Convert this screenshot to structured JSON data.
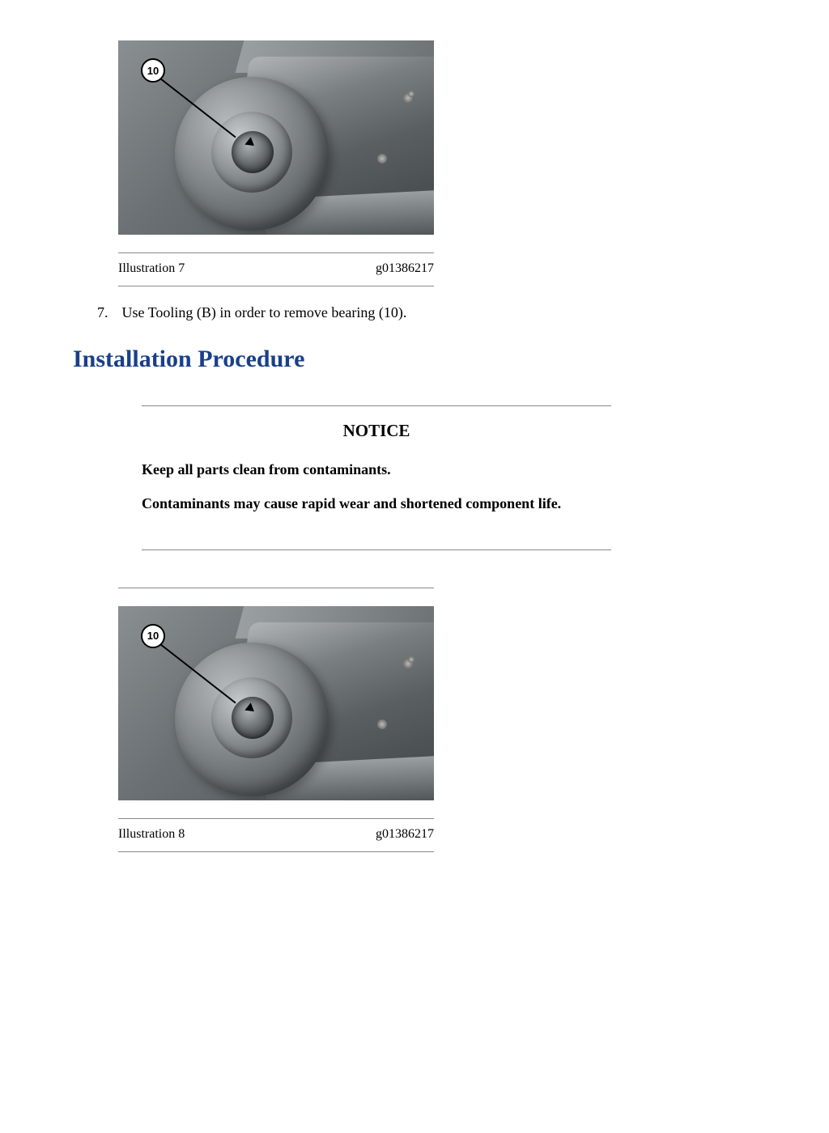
{
  "figure1": {
    "callout_label": "10",
    "illustration_label": "Illustration 7",
    "graphic_id": "g01386217"
  },
  "step": {
    "number": "7.",
    "text": "Use Tooling (B) in order to remove bearing (10)."
  },
  "heading": {
    "text": "Installation Procedure",
    "color": "#1a3f8a"
  },
  "notice": {
    "title": "NOTICE",
    "line1": "Keep all parts clean from contaminants.",
    "line2": "Contaminants may cause rapid wear and shortened component life."
  },
  "figure2": {
    "callout_label": "10",
    "illustration_label": "Illustration 8",
    "graphic_id": "g01386217"
  }
}
